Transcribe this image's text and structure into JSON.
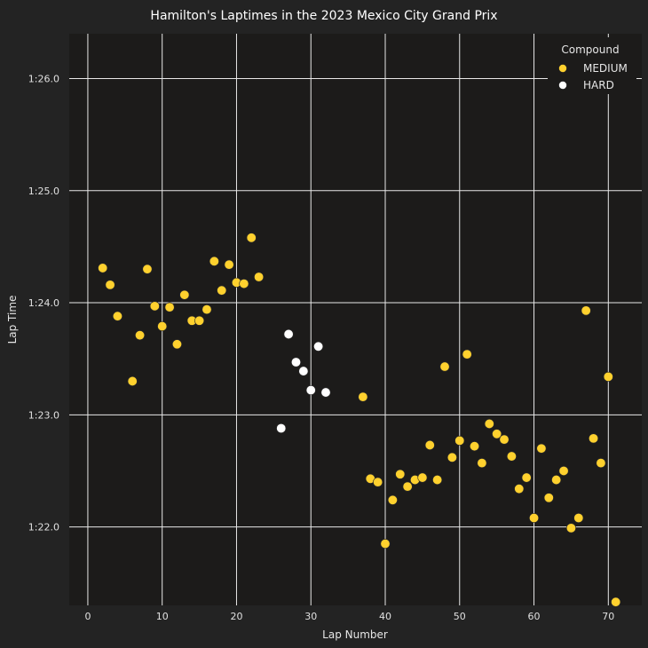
{
  "chart_data": {
    "type": "scatter",
    "title": "Hamilton's Laptimes in the 2023 Mexico City Grand Prix",
    "xlabel": "Lap Number",
    "ylabel": "Lap Time",
    "xlim": [
      -2.5,
      74.5
    ],
    "ylim": [
      81.3,
      86.4
    ],
    "xticks": [
      0,
      10,
      20,
      30,
      40,
      50,
      60,
      70
    ],
    "yticks": [
      {
        "value": 82,
        "label": "1:22.0"
      },
      {
        "value": 83,
        "label": "1:23.0"
      },
      {
        "value": 84,
        "label": "1:24.0"
      },
      {
        "value": 85,
        "label": "1:25.0"
      },
      {
        "value": 86,
        "label": "1:26.0"
      }
    ],
    "grid": true,
    "legend": {
      "title": "Compound",
      "position": "top-right"
    },
    "series": [
      {
        "name": "MEDIUM",
        "color": "#ffd12e",
        "points": [
          [
            2,
            84.31
          ],
          [
            3,
            84.16
          ],
          [
            4,
            83.88
          ],
          [
            6,
            83.3
          ],
          [
            7,
            83.71
          ],
          [
            8,
            84.3
          ],
          [
            9,
            83.97
          ],
          [
            10,
            83.79
          ],
          [
            11,
            83.96
          ],
          [
            12,
            83.63
          ],
          [
            13,
            84.07
          ],
          [
            14,
            83.84
          ],
          [
            15,
            83.84
          ],
          [
            16,
            83.94
          ],
          [
            17,
            84.37
          ],
          [
            18,
            84.11
          ],
          [
            19,
            84.34
          ],
          [
            20,
            84.18
          ],
          [
            21,
            84.17
          ],
          [
            22,
            84.58
          ],
          [
            23,
            84.23
          ],
          [
            37,
            83.16
          ],
          [
            38,
            82.43
          ],
          [
            39,
            82.4
          ],
          [
            40,
            81.85
          ],
          [
            41,
            82.24
          ],
          [
            42,
            82.47
          ],
          [
            43,
            82.36
          ],
          [
            44,
            82.42
          ],
          [
            45,
            82.44
          ],
          [
            46,
            82.73
          ],
          [
            47,
            82.42
          ],
          [
            48,
            83.43
          ],
          [
            49,
            82.62
          ],
          [
            50,
            82.77
          ],
          [
            51,
            83.54
          ],
          [
            52,
            82.72
          ],
          [
            53,
            82.57
          ],
          [
            54,
            82.92
          ],
          [
            55,
            82.83
          ],
          [
            56,
            82.78
          ],
          [
            57,
            82.63
          ],
          [
            58,
            82.34
          ],
          [
            59,
            82.44
          ],
          [
            60,
            82.08
          ],
          [
            61,
            82.7
          ],
          [
            62,
            82.26
          ],
          [
            63,
            82.42
          ],
          [
            64,
            82.5
          ],
          [
            65,
            81.99
          ],
          [
            66,
            82.08
          ],
          [
            67,
            83.93
          ],
          [
            68,
            82.79
          ],
          [
            69,
            82.57
          ],
          [
            70,
            83.34
          ],
          [
            71,
            81.33
          ]
        ]
      },
      {
        "name": "HARD",
        "color": "#ffffff",
        "points": [
          [
            26,
            82.88
          ],
          [
            27,
            83.72
          ],
          [
            28,
            83.47
          ],
          [
            29,
            83.39
          ],
          [
            30,
            83.22
          ],
          [
            31,
            83.61
          ],
          [
            32,
            83.2
          ]
        ]
      }
    ]
  }
}
